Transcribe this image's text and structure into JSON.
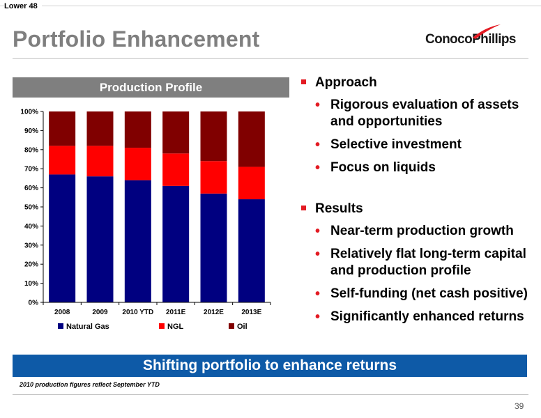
{
  "header": {
    "section": "Lower 48",
    "title": "Portfolio Enhancement",
    "logo_text": "ConocoPhillips"
  },
  "chart_panel": {
    "title": "Production Profile"
  },
  "chart_data": {
    "type": "bar",
    "stacked": true,
    "normalized": true,
    "categories": [
      "2008",
      "2009",
      "2010 YTD",
      "2011E",
      "2012E",
      "2013E"
    ],
    "series": [
      {
        "name": "Natural Gas",
        "color": "#000080",
        "values": [
          67,
          66,
          64,
          61,
          57,
          54
        ]
      },
      {
        "name": "NGL",
        "color": "#ff0000",
        "values": [
          15,
          16,
          17,
          17,
          17,
          17
        ]
      },
      {
        "name": "Oil",
        "color": "#800000",
        "values": [
          18,
          18,
          19,
          22,
          26,
          29
        ]
      }
    ],
    "y_ticks": [
      "0%",
      "10%",
      "20%",
      "30%",
      "40%",
      "50%",
      "60%",
      "70%",
      "80%",
      "90%",
      "100%"
    ],
    "ylim": [
      0,
      100
    ],
    "grid": false,
    "legend_position": "bottom"
  },
  "bullets": {
    "approach": {
      "label": "Approach",
      "items": [
        "Rigorous evaluation of assets and opportunities",
        "Selective investment",
        "Focus on liquids"
      ]
    },
    "results": {
      "label": "Results",
      "items": [
        "Near-term production growth",
        "Relatively flat long-term capital and production profile",
        "Self-funding (net cash positive)",
        "Significantly enhanced returns"
      ]
    }
  },
  "banner": "Shifting portfolio to enhance returns",
  "footnote": "2010 production figures reflect September YTD",
  "page_number": "39"
}
